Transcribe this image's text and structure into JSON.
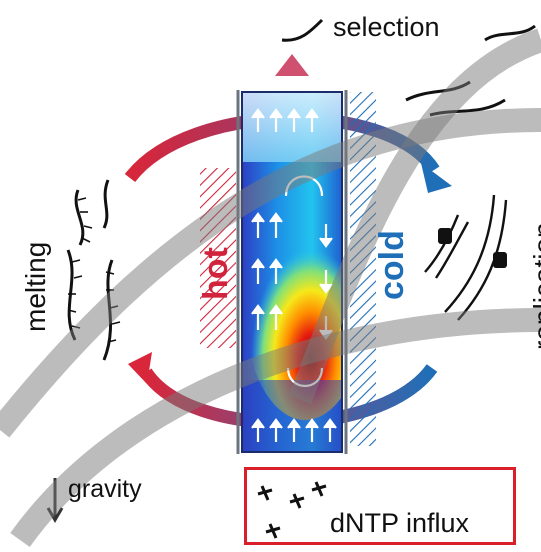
{
  "labels": {
    "selection": "selection",
    "melting": "melting",
    "hot": "hot",
    "cold": "cold",
    "replication": "replication",
    "gravity": "gravity",
    "dntp_influx": "dNTP influx"
  },
  "colors": {
    "hot": "#d1243c",
    "cold": "#1f6fb8",
    "influx_box": "#d9202a"
  }
}
